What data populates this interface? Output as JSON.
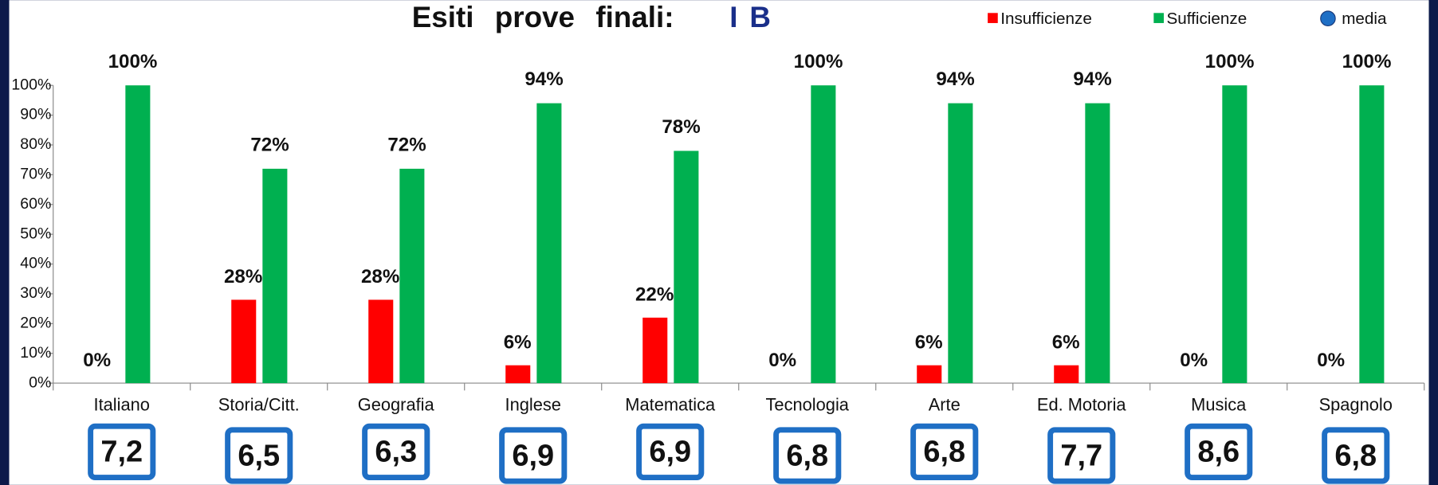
{
  "chart_data": {
    "type": "bar",
    "title": "Esiti prove finali:",
    "title_class": "I B",
    "categories": [
      "Italiano",
      "Storia/Citt.",
      "Geografia",
      "Inglese",
      "Matematica",
      "Tecnologia",
      "Arte",
      "Ed. Motoria",
      "Musica",
      "Spagnolo"
    ],
    "series": [
      {
        "name": "Insufficienze",
        "color": "#ff0000",
        "values": [
          0,
          28,
          28,
          6,
          22,
          0,
          6,
          6,
          0,
          0
        ],
        "value_labels": [
          "0%",
          "28%",
          "28%",
          "6%",
          "22%",
          "0%",
          "6%",
          "6%",
          "0%",
          "0%"
        ]
      },
      {
        "name": "Sufficienze",
        "color": "#00b050",
        "values": [
          100,
          72,
          72,
          94,
          78,
          100,
          94,
          94,
          100,
          100
        ],
        "value_labels": [
          "100%",
          "72%",
          "72%",
          "94%",
          "78%",
          "100%",
          "94%",
          "94%",
          "100%",
          "100%"
        ]
      },
      {
        "name": "media",
        "color": "#1f6fc5",
        "values": [
          7.2,
          6.5,
          6.3,
          6.9,
          6.9,
          6.8,
          6.8,
          7.7,
          8.6,
          6.8
        ],
        "value_labels": [
          "7,2",
          "6,5",
          "6,3",
          "6,9",
          "6,9",
          "6,8",
          "6,8",
          "7,7",
          "8,6",
          "6,8"
        ]
      }
    ],
    "ylim": [
      0,
      100
    ],
    "yticks": [
      {
        "value": 0,
        "label": "0%"
      },
      {
        "value": 10,
        "label": "10%"
      },
      {
        "value": 20,
        "label": "20%"
      },
      {
        "value": 30,
        "label": "30%"
      },
      {
        "value": 40,
        "label": "40%"
      },
      {
        "value": 50,
        "label": "50%"
      },
      {
        "value": 60,
        "label": "60%"
      },
      {
        "value": 70,
        "label": "70%"
      },
      {
        "value": 80,
        "label": "80%"
      },
      {
        "value": 90,
        "label": "90%"
      },
      {
        "value": 100,
        "label": "100%"
      }
    ],
    "legend": "top-right"
  }
}
